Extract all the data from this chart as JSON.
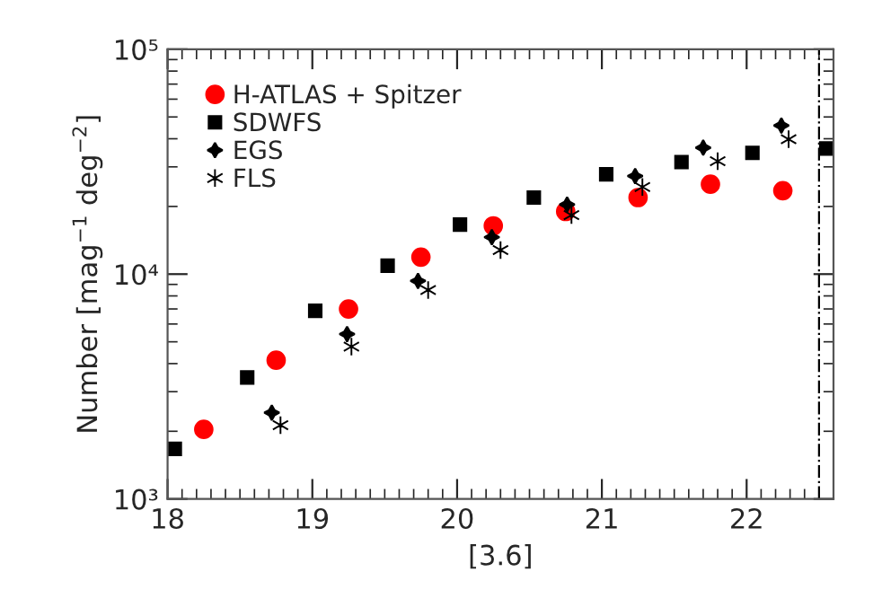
{
  "chart_data": {
    "type": "scatter",
    "xlabel": "[3.6]",
    "ylabel": "Number [mag$^{−1}$ deg$^{−2}$]",
    "xlim": [
      18,
      22.6
    ],
    "xticks": [
      18,
      19,
      20,
      21,
      22
    ],
    "ylim": [
      1000,
      100000
    ],
    "yticks": [
      {
        "value": 1000,
        "label": "10³"
      },
      {
        "value": 10000,
        "label": "10⁴"
      },
      {
        "value": 100000,
        "label": "10⁵"
      }
    ],
    "log": "y",
    "legend": "top left",
    "grid": false,
    "ref_lines": [
      {
        "axis": "x",
        "value": 22.5,
        "line_style": "dashdot",
        "color": "#000000"
      }
    ],
    "series": [
      {
        "name": "H-ATLAS + Spitzer",
        "color": "#ff0000",
        "marker": "circle",
        "x": [
          18.25,
          18.75,
          19.25,
          19.75,
          20.25,
          20.75,
          21.25,
          21.75,
          22.25
        ],
        "values": [
          2040,
          4140,
          7000,
          11900,
          16400,
          19000,
          21900,
          25100,
          23500
        ]
      },
      {
        "name": "SDWFS",
        "color": "#000000",
        "marker": "square",
        "x": [
          18.05,
          18.55,
          19.02,
          19.52,
          20.02,
          20.53,
          21.03,
          21.55,
          22.04,
          22.55
        ],
        "values": [
          1670,
          3470,
          6870,
          10900,
          16600,
          21900,
          27800,
          31500,
          34600,
          36200
        ]
      },
      {
        "name": "EGS",
        "color": "#000000",
        "marker": "star",
        "x": [
          18.72,
          19.24,
          19.73,
          20.24,
          20.76,
          21.23,
          21.7,
          22.24
        ],
        "values": [
          2420,
          5410,
          9330,
          14600,
          20400,
          27300,
          36500,
          45800
        ]
      },
      {
        "name": "FLS",
        "color": "#000000",
        "marker": "cross",
        "x": [
          18.78,
          19.27,
          19.8,
          20.3,
          20.79,
          21.28,
          21.8,
          22.29
        ],
        "values": [
          2130,
          4760,
          8500,
          12800,
          18300,
          24400,
          31800,
          39800
        ]
      }
    ]
  }
}
